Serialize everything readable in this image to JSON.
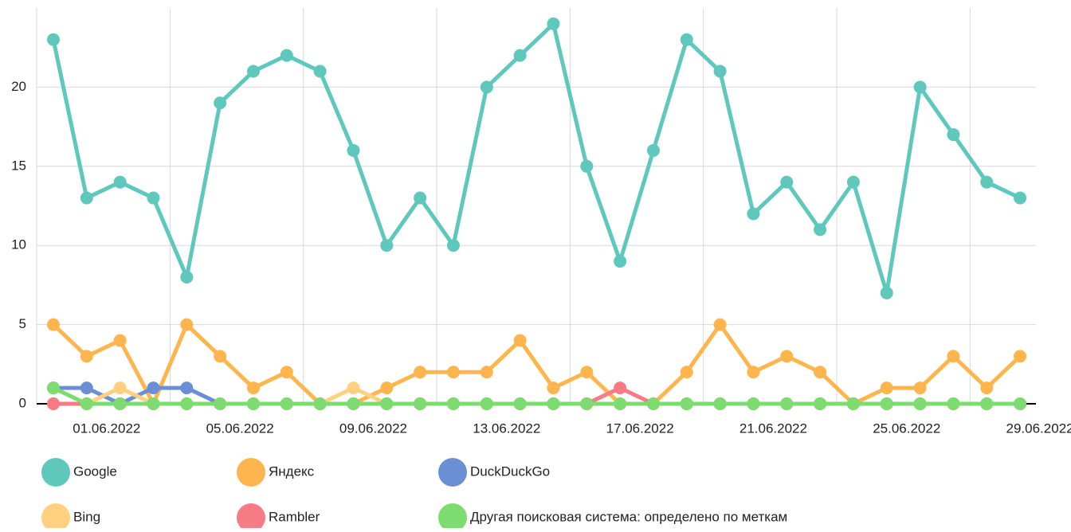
{
  "chart_data": {
    "type": "line",
    "categories": [
      null,
      "01.06.2022",
      null,
      null,
      null,
      "05.06.2022",
      null,
      null,
      null,
      "09.06.2022",
      null,
      null,
      null,
      "13.06.2022",
      null,
      null,
      null,
      "17.06.2022",
      null,
      null,
      null,
      "21.06.2022",
      null,
      null,
      null,
      "25.06.2022",
      null,
      null,
      null,
      "29.06.2022"
    ],
    "series": [
      {
        "name": "Google",
        "color": "#5ec8bd",
        "values": [
          23,
          13,
          14,
          13,
          8,
          19,
          21,
          22,
          21,
          16,
          10,
          13,
          10,
          20,
          22,
          24,
          15,
          9,
          16,
          23,
          21,
          12,
          14,
          11,
          14,
          7,
          20,
          17,
          14,
          13
        ]
      },
      {
        "name": "Яндекс",
        "color": "#ffb54d",
        "values": [
          5,
          3,
          4,
          0,
          5,
          3,
          1,
          2,
          0,
          0,
          1,
          2,
          2,
          2,
          4,
          1,
          2,
          0,
          0,
          2,
          5,
          2,
          3,
          2,
          0,
          1,
          1,
          3,
          1,
          3
        ]
      },
      {
        "name": "DuckDuckGo",
        "color": "#6b8fd4",
        "values": [
          1,
          1,
          0,
          1,
          1,
          0,
          0,
          0,
          0,
          0,
          0,
          0,
          0,
          0,
          0,
          0,
          0,
          0,
          0,
          0,
          0,
          0,
          0,
          0,
          0,
          0,
          0,
          0,
          0,
          0
        ]
      },
      {
        "name": "Bing",
        "color": "#ffd07f",
        "values": [
          0,
          0,
          1,
          0,
          0,
          0,
          0,
          0,
          0,
          1,
          0,
          0,
          0,
          0,
          0,
          0,
          0,
          0,
          0,
          0,
          0,
          0,
          0,
          0,
          0,
          0,
          0,
          0,
          0,
          0
        ]
      },
      {
        "name": "Rambler",
        "color": "#f77b85",
        "values": [
          0,
          0,
          0,
          0,
          0,
          0,
          0,
          0,
          0,
          0,
          0,
          0,
          0,
          0,
          0,
          0,
          0,
          1,
          0,
          0,
          0,
          0,
          0,
          0,
          0,
          0,
          0,
          0,
          0,
          0
        ]
      },
      {
        "name": "Другая поисковая система: определено по меткам",
        "color": "#7ddc6f",
        "values": [
          1,
          0,
          0,
          0,
          0,
          0,
          0,
          0,
          0,
          0,
          0,
          0,
          0,
          0,
          0,
          0,
          0,
          0,
          0,
          0,
          0,
          0,
          0,
          0,
          0,
          0,
          0,
          0,
          0,
          0
        ]
      }
    ],
    "ylim": [
      0,
      25
    ],
    "yticks": [
      0,
      5,
      10,
      15,
      20
    ],
    "grid": true
  }
}
